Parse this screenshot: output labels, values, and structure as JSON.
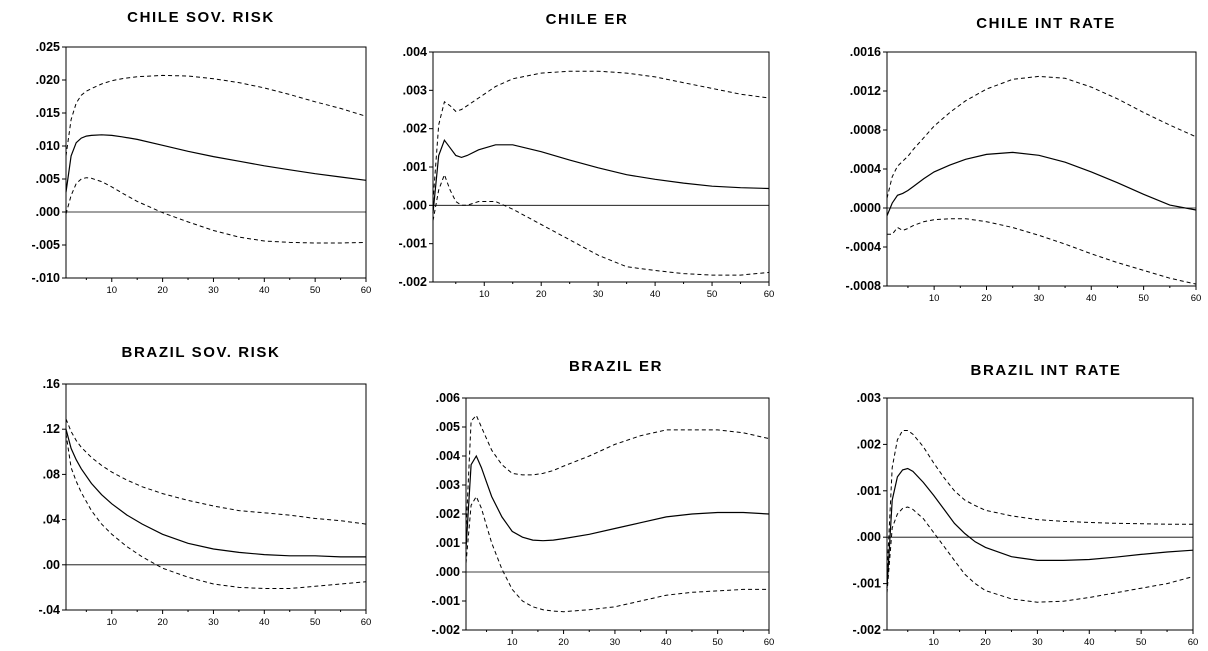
{
  "chart_data": [
    {
      "type": "line",
      "title": "CHILE  SOV. RISK",
      "xlim": [
        1,
        60
      ],
      "x_ticks": [
        "10",
        "20",
        "30",
        "40",
        "50",
        "60"
      ],
      "ylim": [
        -0.01,
        0.025
      ],
      "y_ticks": [
        ".025",
        ".020",
        ".015",
        ".010",
        ".005",
        ".000",
        "-.005",
        "-.010"
      ],
      "x": [
        1,
        2,
        3,
        4,
        5,
        6,
        8,
        10,
        12,
        15,
        20,
        25,
        30,
        35,
        40,
        45,
        50,
        55,
        60
      ],
      "series": [
        {
          "style": "solid",
          "values": [
            0.003,
            0.0085,
            0.0105,
            0.0112,
            0.0115,
            0.0116,
            0.0117,
            0.0116,
            0.0114,
            0.011,
            0.0101,
            0.0092,
            0.0084,
            0.0077,
            0.007,
            0.0064,
            0.0058,
            0.0053,
            0.0048
          ]
        },
        {
          "style": "dashed",
          "values": [
            0.0085,
            0.014,
            0.0165,
            0.0177,
            0.0183,
            0.0187,
            0.0194,
            0.0199,
            0.0202,
            0.0205,
            0.0207,
            0.0206,
            0.0202,
            0.0196,
            0.0188,
            0.0178,
            0.0167,
            0.0157,
            0.0145
          ]
        },
        {
          "style": "dashed",
          "values": [
            -0.0003,
            0.0025,
            0.0043,
            0.005,
            0.0052,
            0.0051,
            0.0046,
            0.0038,
            0.0029,
            0.0016,
            -0.0001,
            -0.0015,
            -0.0028,
            -0.0038,
            -0.0044,
            -0.0046,
            -0.0047,
            -0.0047,
            -0.0046
          ]
        }
      ]
    },
    {
      "type": "line",
      "title": "CHILE   ER",
      "xlim": [
        1,
        60
      ],
      "x_ticks": [
        "10",
        "20",
        "30",
        "40",
        "50",
        "60"
      ],
      "ylim": [
        -0.002,
        0.004
      ],
      "y_ticks": [
        ".004",
        ".003",
        ".002",
        ".001",
        ".000",
        "-.001",
        "-.002"
      ],
      "x": [
        1,
        2,
        3,
        4,
        5,
        6,
        7,
        9,
        12,
        15,
        20,
        25,
        30,
        35,
        40,
        45,
        50,
        55,
        60
      ],
      "series": [
        {
          "style": "solid",
          "values": [
            -0.0002,
            0.0013,
            0.0017,
            0.0015,
            0.0013,
            0.00125,
            0.0013,
            0.00145,
            0.00158,
            0.00158,
            0.0014,
            0.00118,
            0.00098,
            0.0008,
            0.00068,
            0.00058,
            0.0005,
            0.00046,
            0.00044
          ]
        },
        {
          "style": "dashed",
          "values": [
            0.0001,
            0.0021,
            0.0027,
            0.0026,
            0.00245,
            0.0025,
            0.0026,
            0.0028,
            0.0031,
            0.0033,
            0.00345,
            0.0035,
            0.0035,
            0.00345,
            0.00335,
            0.0032,
            0.00305,
            0.0029,
            0.0028
          ]
        },
        {
          "style": "dashed",
          "values": [
            -0.0004,
            0.0004,
            0.0008,
            0.0004,
            0.0001,
            0.0,
            0.0,
            0.0001,
            0.0001,
            -0.0001,
            -0.0005,
            -0.0009,
            -0.0013,
            -0.0016,
            -0.0017,
            -0.00178,
            -0.00182,
            -0.00182,
            -0.00175
          ]
        }
      ]
    },
    {
      "type": "line",
      "title": "CHILE  INT RATE",
      "xlim": [
        1,
        60
      ],
      "x_ticks": [
        "10",
        "20",
        "30",
        "40",
        "50",
        "60"
      ],
      "ylim": [
        -0.0008,
        0.0016
      ],
      "y_ticks": [
        ".0016",
        ".0012",
        ".0008",
        ".0004",
        ".0000",
        "-.0004",
        "-.0008"
      ],
      "x": [
        1,
        2,
        3,
        4,
        5,
        6,
        8,
        10,
        13,
        16,
        20,
        25,
        30,
        35,
        40,
        45,
        50,
        55,
        60
      ],
      "series": [
        {
          "style": "solid",
          "values": [
            -8e-05,
            5e-05,
            0.00013,
            0.00015,
            0.00018,
            0.00022,
            0.0003,
            0.00037,
            0.00044,
            0.0005,
            0.00055,
            0.00057,
            0.00054,
            0.00047,
            0.00037,
            0.00026,
            0.00014,
            3e-05,
            -2e-05
          ]
        },
        {
          "style": "dashed",
          "values": [
            0.0001,
            0.00032,
            0.00043,
            0.00048,
            0.00053,
            0.0006,
            0.00072,
            0.00084,
            0.00098,
            0.0011,
            0.00122,
            0.00132,
            0.00135,
            0.00133,
            0.00124,
            0.00112,
            0.00098,
            0.00085,
            0.00073
          ]
        },
        {
          "style": "dashed",
          "values": [
            -0.00027,
            -0.00027,
            -0.0002,
            -0.00023,
            -0.00021,
            -0.00018,
            -0.00014,
            -0.00012,
            -0.00011,
            -0.00011,
            -0.00014,
            -0.0002,
            -0.00028,
            -0.00037,
            -0.00047,
            -0.00056,
            -0.00064,
            -0.00072,
            -0.00078
          ]
        }
      ]
    },
    {
      "type": "line",
      "title": "BRAZIL  SOV. RISK",
      "xlim": [
        1,
        60
      ],
      "x_ticks": [
        "10",
        "20",
        "30",
        "40",
        "50",
        "60"
      ],
      "ylim": [
        -0.04,
        0.16
      ],
      "y_ticks": [
        ".16",
        ".12",
        ".08",
        ".04",
        ".00",
        "-.04"
      ],
      "x": [
        1,
        2,
        3,
        4,
        6,
        8,
        10,
        13,
        16,
        20,
        25,
        30,
        35,
        40,
        45,
        50,
        55,
        60
      ],
      "series": [
        {
          "style": "solid",
          "values": [
            0.12,
            0.103,
            0.093,
            0.085,
            0.072,
            0.062,
            0.054,
            0.044,
            0.036,
            0.027,
            0.019,
            0.014,
            0.011,
            0.009,
            0.008,
            0.008,
            0.007,
            0.007
          ]
        },
        {
          "style": "dashed",
          "values": [
            0.129,
            0.118,
            0.11,
            0.104,
            0.095,
            0.088,
            0.082,
            0.075,
            0.069,
            0.063,
            0.057,
            0.052,
            0.048,
            0.046,
            0.044,
            0.041,
            0.039,
            0.036
          ]
        },
        {
          "style": "dashed",
          "values": [
            0.116,
            0.086,
            0.074,
            0.064,
            0.048,
            0.036,
            0.027,
            0.016,
            0.007,
            -0.003,
            -0.011,
            -0.017,
            -0.02,
            -0.021,
            -0.021,
            -0.019,
            -0.017,
            -0.015
          ]
        }
      ]
    },
    {
      "type": "line",
      "title": "BRAZIL  ER",
      "xlim": [
        1,
        60
      ],
      "x_ticks": [
        "10",
        "20",
        "30",
        "40",
        "50",
        "60"
      ],
      "ylim": [
        -0.002,
        0.006
      ],
      "y_ticks": [
        ".006",
        ".005",
        ".004",
        ".003",
        ".002",
        ".001",
        ".000",
        "-.001",
        "-.002"
      ],
      "x": [
        1,
        2,
        3,
        4,
        5,
        6,
        8,
        10,
        12,
        14,
        16,
        18,
        20,
        25,
        30,
        35,
        40,
        45,
        50,
        55,
        60
      ],
      "series": [
        {
          "style": "solid",
          "values": [
            0.0008,
            0.0037,
            0.004,
            0.0036,
            0.0031,
            0.0026,
            0.0019,
            0.0014,
            0.0012,
            0.0011,
            0.00108,
            0.0011,
            0.00115,
            0.0013,
            0.0015,
            0.0017,
            0.0019,
            0.002,
            0.00205,
            0.00205,
            0.002
          ]
        },
        {
          "style": "dashed",
          "values": [
            0.0014,
            0.0052,
            0.0054,
            0.005,
            0.0046,
            0.0042,
            0.0037,
            0.0034,
            0.00335,
            0.00335,
            0.0034,
            0.0035,
            0.00365,
            0.004,
            0.0044,
            0.0047,
            0.0049,
            0.0049,
            0.0049,
            0.0048,
            0.0046
          ]
        },
        {
          "style": "dashed",
          "values": [
            0.0003,
            0.0023,
            0.0026,
            0.0022,
            0.0016,
            0.001,
            0.0001,
            -0.0006,
            -0.001,
            -0.0012,
            -0.0013,
            -0.00135,
            -0.00137,
            -0.0013,
            -0.0012,
            -0.001,
            -0.0008,
            -0.0007,
            -0.00065,
            -0.0006,
            -0.0006
          ]
        }
      ]
    },
    {
      "type": "line",
      "title": "BRAZIL  INT RATE",
      "xlim": [
        1,
        60
      ],
      "x_ticks": [
        "10",
        "20",
        "30",
        "40",
        "50",
        "60"
      ],
      "ylim": [
        -0.002,
        0.003
      ],
      "y_ticks": [
        ".003",
        ".002",
        ".001",
        ".000",
        "-.001",
        "-.002"
      ],
      "x": [
        1,
        2,
        3,
        4,
        5,
        6,
        8,
        10,
        12,
        14,
        16,
        18,
        20,
        25,
        30,
        35,
        40,
        45,
        50,
        55,
        60
      ],
      "series": [
        {
          "style": "solid",
          "values": [
            -0.0011,
            0.0008,
            0.0013,
            0.00145,
            0.00148,
            0.00142,
            0.00118,
            0.0009,
            0.0006,
            0.0003,
            8e-05,
            -0.0001,
            -0.00022,
            -0.00042,
            -0.0005,
            -0.0005,
            -0.00048,
            -0.00043,
            -0.00037,
            -0.00032,
            -0.00028
          ]
        },
        {
          "style": "dashed",
          "values": [
            -0.0008,
            0.0015,
            0.0021,
            0.0023,
            0.0023,
            0.00222,
            0.00195,
            0.0016,
            0.00128,
            0.001,
            0.0008,
            0.00068,
            0.00058,
            0.00046,
            0.00038,
            0.00034,
            0.00032,
            0.0003,
            0.00029,
            0.00028,
            0.00028
          ]
        },
        {
          "style": "dashed",
          "values": [
            -0.0012,
            0.0002,
            0.0005,
            0.00062,
            0.00065,
            0.0006,
            0.0004,
            0.0001,
            -0.0002,
            -0.0005,
            -0.0008,
            -0.001,
            -0.00115,
            -0.00133,
            -0.0014,
            -0.00138,
            -0.0013,
            -0.0012,
            -0.0011,
            -0.001,
            -0.00085
          ]
        }
      ]
    }
  ]
}
